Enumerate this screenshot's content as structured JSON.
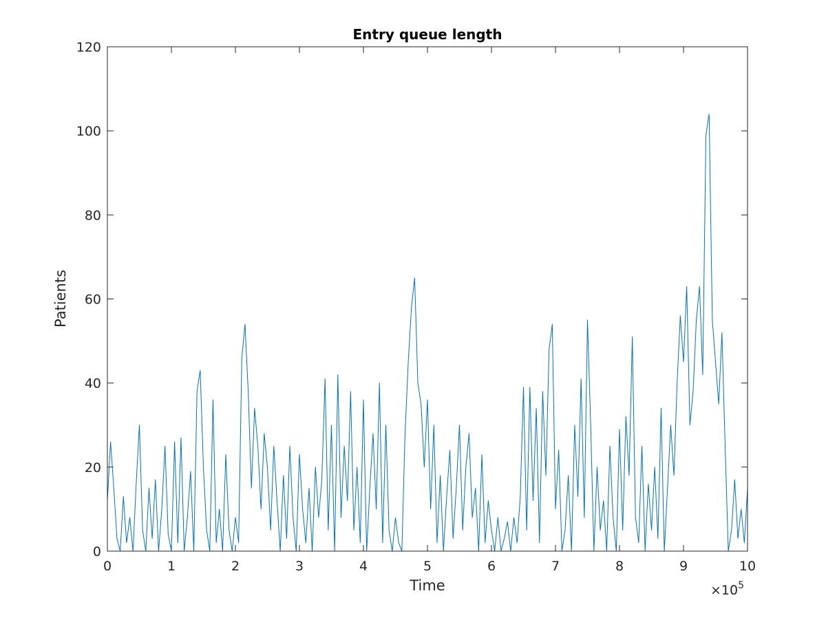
{
  "chart_data": {
    "type": "line",
    "title": "Entry queue length",
    "x_label": "Time",
    "y_label": "Patients",
    "x_multiplier": {
      "base": "×10",
      "exponent": "5"
    },
    "xlim": [
      0,
      1000000
    ],
    "xticks": [
      0,
      {
        "value": 100000,
        "label": "1"
      },
      {
        "value": 200000,
        "label": "2"
      },
      {
        "value": 300000,
        "label": "3"
      },
      {
        "value": 400000,
        "label": "4"
      },
      {
        "value": 500000,
        "label": "5"
      },
      {
        "value": 600000,
        "label": "6"
      },
      {
        "value": 700000,
        "label": "7"
      },
      {
        "value": 800000,
        "label": "8"
      },
      {
        "value": 900000,
        "label": "9"
      },
      {
        "value": 1000000,
        "label": "10"
      }
    ],
    "ylim": [
      0,
      120
    ],
    "yticks": [
      0,
      20,
      40,
      60,
      80,
      100,
      120
    ],
    "grid": false,
    "x": [
      0,
      5000,
      10000,
      15000,
      20000,
      25000,
      30000,
      35000,
      40000,
      45000,
      50000,
      55000,
      60000,
      65000,
      70000,
      75000,
      80000,
      85000,
      90000,
      95000,
      100000,
      105000,
      110000,
      115000,
      120000,
      125000,
      130000,
      135000,
      140000,
      145000,
      150000,
      155000,
      160000,
      165000,
      170000,
      175000,
      180000,
      185000,
      190000,
      195000,
      200000,
      205000,
      210000,
      215000,
      220000,
      225000,
      230000,
      235000,
      240000,
      245000,
      250000,
      255000,
      260000,
      265000,
      270000,
      275000,
      280000,
      285000,
      290000,
      295000,
      300000,
      305000,
      310000,
      315000,
      320000,
      325000,
      330000,
      335000,
      340000,
      345000,
      350000,
      355000,
      360000,
      365000,
      370000,
      375000,
      380000,
      385000,
      390000,
      395000,
      400000,
      405000,
      410000,
      415000,
      420000,
      425000,
      430000,
      435000,
      440000,
      445000,
      450000,
      455000,
      460000,
      465000,
      470000,
      475000,
      480000,
      485000,
      490000,
      495000,
      500000,
      505000,
      510000,
      515000,
      520000,
      525000,
      530000,
      535000,
      540000,
      545000,
      550000,
      555000,
      560000,
      565000,
      570000,
      575000,
      580000,
      585000,
      590000,
      595000,
      600000,
      605000,
      610000,
      615000,
      620000,
      625000,
      630000,
      635000,
      640000,
      645000,
      650000,
      655000,
      660000,
      665000,
      670000,
      675000,
      680000,
      685000,
      690000,
      695000,
      700000,
      705000,
      710000,
      715000,
      720000,
      725000,
      730000,
      735000,
      740000,
      745000,
      750000,
      755000,
      760000,
      765000,
      770000,
      775000,
      780000,
      785000,
      790000,
      795000,
      800000,
      805000,
      810000,
      815000,
      820000,
      825000,
      830000,
      835000,
      840000,
      845000,
      850000,
      855000,
      860000,
      865000,
      870000,
      875000,
      880000,
      885000,
      890000,
      895000,
      900000,
      905000,
      910000,
      915000,
      920000,
      925000,
      930000,
      935000,
      940000,
      945000,
      950000,
      955000,
      960000,
      965000,
      970000,
      975000,
      980000,
      985000,
      990000,
      995000,
      1000000
    ],
    "series": [
      {
        "name": "Entry queue",
        "color": "#0072bd",
        "values": [
          12,
          26,
          15,
          3,
          0,
          13,
          2,
          8,
          0,
          16,
          30,
          5,
          0,
          15,
          3,
          17,
          0,
          10,
          25,
          4,
          0,
          26,
          2,
          27,
          0,
          8,
          19,
          0,
          38,
          43,
          20,
          5,
          0,
          36,
          2,
          10,
          0,
          23,
          5,
          0,
          8,
          2,
          46,
          54,
          38,
          15,
          34,
          25,
          10,
          28,
          20,
          5,
          25,
          12,
          0,
          18,
          3,
          25,
          8,
          0,
          23,
          10,
          2,
          15,
          0,
          20,
          8,
          17,
          41,
          5,
          30,
          0,
          42,
          8,
          25,
          12,
          38,
          5,
          20,
          2,
          36,
          0,
          15,
          28,
          10,
          40,
          2,
          30,
          5,
          0,
          8,
          2,
          0,
          28,
          45,
          58,
          65,
          40,
          35,
          20,
          36,
          10,
          30,
          2,
          18,
          0,
          13,
          24,
          3,
          15,
          30,
          5,
          20,
          28,
          8,
          15,
          0,
          23,
          2,
          12,
          5,
          0,
          8,
          0,
          3,
          7,
          0,
          8,
          2,
          13,
          39,
          5,
          39,
          12,
          34,
          2,
          38,
          18,
          48,
          54,
          10,
          24,
          0,
          5,
          18,
          0,
          30,
          13,
          41,
          8,
          55,
          30,
          0,
          20,
          5,
          12,
          0,
          25,
          8,
          0,
          29,
          5,
          32,
          18,
          51,
          8,
          2,
          25,
          0,
          16,
          5,
          20,
          3,
          34,
          0,
          15,
          30,
          18,
          40,
          56,
          45,
          63,
          30,
          38,
          55,
          63,
          42,
          99,
          104,
          55,
          45,
          35,
          52,
          25,
          0,
          5,
          17,
          3,
          10,
          2,
          15
        ]
      }
    ]
  }
}
